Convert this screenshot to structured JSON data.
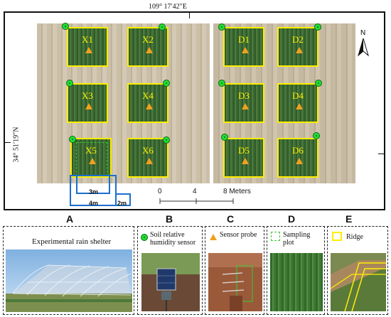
{
  "map": {
    "longitude": "109° 17′42″E",
    "latitude": "34° 51′19″N",
    "north": "N",
    "plots": [
      {
        "label": "X1"
      },
      {
        "label": "X2"
      },
      {
        "label": "D1"
      },
      {
        "label": "D2"
      },
      {
        "label": "X3"
      },
      {
        "label": "X4"
      },
      {
        "label": "D3"
      },
      {
        "label": "D4"
      },
      {
        "label": "X5"
      },
      {
        "label": "X6"
      },
      {
        "label": "D5"
      },
      {
        "label": "D6"
      }
    ],
    "scale": {
      "ticks": [
        "0",
        "4",
        "8 Meters"
      ]
    },
    "dimensions": {
      "inner": "3m",
      "outer": "4m",
      "gap": "2m"
    }
  },
  "panels": {
    "A": {
      "letter": "A",
      "title": "Experimental rain shelter"
    },
    "B": {
      "letter": "B",
      "legend": "Soil relative humidity sensor"
    },
    "C": {
      "letter": "C",
      "legend": "Sensor probe"
    },
    "D": {
      "letter": "D",
      "legend": "Sampling plot"
    },
    "E": {
      "letter": "E",
      "legend": "Ridge"
    }
  },
  "colors": {
    "ridge": "#ffee00",
    "sensor": "#22dd33",
    "probe": "#f0a020",
    "dimension": "#1a6fd0",
    "sampling": "#33cc33"
  }
}
